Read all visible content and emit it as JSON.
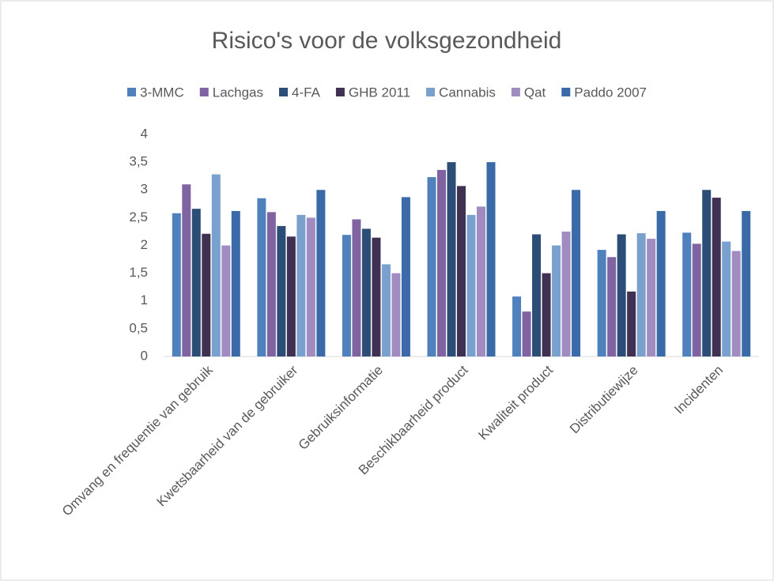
{
  "chart_data": {
    "type": "bar",
    "title": "Risico's voor de volksgezondheid",
    "categories": [
      "Omvang en frequentie van gebruik",
      "Kwetsbaarheid van de gebruiker",
      "Gebruiksinformatie",
      "Beschikbaarheid product",
      "Kwaliteit product",
      "Distributiewijze",
      "Incidenten"
    ],
    "series": [
      {
        "name": "3-MMC",
        "color": "#4f81bd",
        "values": [
          2.58,
          2.85,
          2.19,
          3.23,
          1.08,
          1.92,
          2.23
        ]
      },
      {
        "name": "Lachgas",
        "color": "#8064a2",
        "values": [
          3.1,
          2.6,
          2.47,
          3.36,
          0.81,
          1.79,
          2.03
        ]
      },
      {
        "name": "4-FA",
        "color": "#2c4d75",
        "values": [
          2.66,
          2.35,
          2.3,
          3.5,
          2.2,
          2.2,
          3.0
        ]
      },
      {
        "name": "GHB 2011",
        "color": "#403152",
        "values": [
          2.21,
          2.16,
          2.14,
          3.07,
          1.5,
          1.17,
          2.86
        ]
      },
      {
        "name": "Cannabis",
        "color": "#7aa0cd",
        "values": [
          3.28,
          2.55,
          1.66,
          2.55,
          2.0,
          2.22,
          2.07
        ]
      },
      {
        "name": "Qat",
        "color": "#a08cc0",
        "values": [
          2.0,
          2.5,
          1.5,
          2.7,
          2.25,
          2.12,
          1.9
        ]
      },
      {
        "name": "Paddo 2007",
        "color": "#3a6aa8",
        "values": [
          2.62,
          3.0,
          2.87,
          3.5,
          3.0,
          2.62,
          2.62
        ]
      }
    ],
    "ylim": [
      0,
      4
    ],
    "yticks": [
      0,
      {
        "value": 0.5,
        "label": "0,5"
      },
      1,
      {
        "value": 1.5,
        "label": "1,5"
      },
      2,
      {
        "value": 2.5,
        "label": "2,5"
      },
      3,
      {
        "value": 3.5,
        "label": "3,5"
      },
      4
    ],
    "grid": false,
    "legend": "top"
  }
}
